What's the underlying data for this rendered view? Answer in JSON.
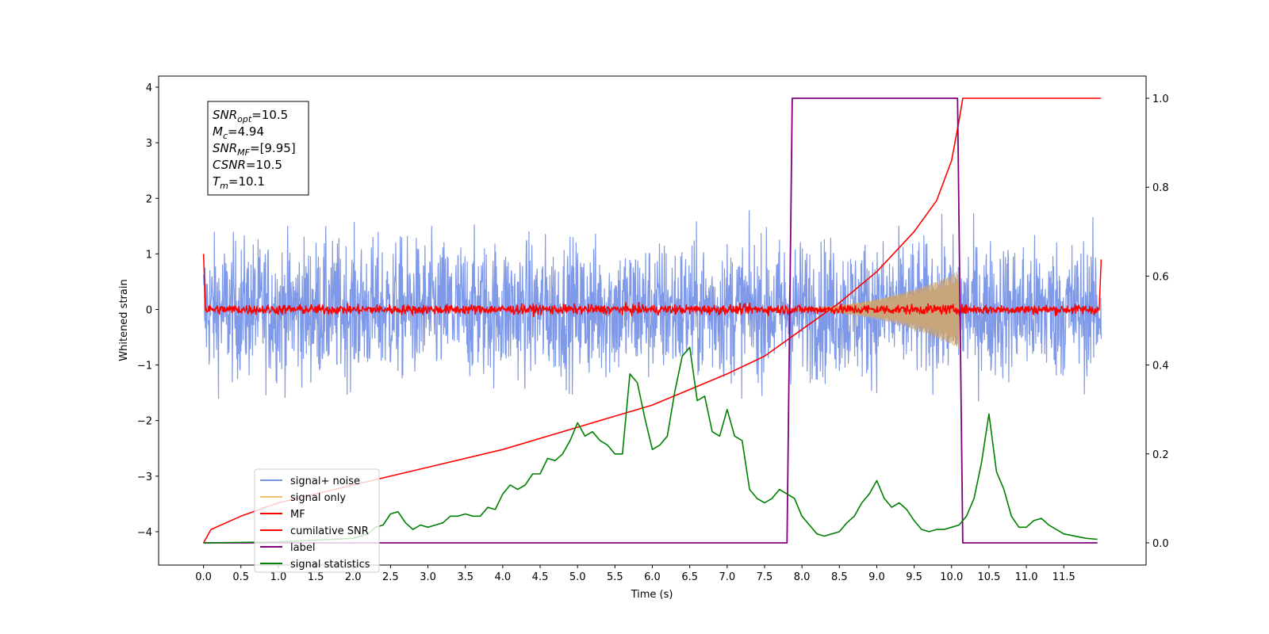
{
  "chart_data": {
    "type": "line",
    "xlabel": "Time (s)",
    "ylabel": "Whitened strain",
    "xlim": [
      -0.6,
      12.6
    ],
    "ylim": [
      -4.6,
      4.2
    ],
    "y2lim": [
      -0.05,
      1.05
    ],
    "x_ticks": [
      "0.0",
      "0.5",
      "1.0",
      "1.5",
      "2.0",
      "2.5",
      "3.0",
      "3.5",
      "4.0",
      "4.5",
      "5.0",
      "5.5",
      "6.0",
      "6.5",
      "7.0",
      "7.5",
      "8.0",
      "8.5",
      "9.0",
      "9.5",
      "10.0",
      "10.5",
      "11.0",
      "11.5"
    ],
    "y_ticks": [
      "4",
      "3",
      "2",
      "1",
      "0",
      "−1",
      "−2",
      "−3",
      "−4"
    ],
    "y2_ticks": [
      "1.0",
      "0.8",
      "0.6",
      "0.4",
      "0.2",
      "0.0"
    ],
    "info_box": [
      {
        "sym": "SNR",
        "sub": "opt",
        "val": "=10.5"
      },
      {
        "sym": "M",
        "sub": "c",
        "val": "=4.94"
      },
      {
        "sym": "SNR",
        "sub": "MF",
        "val": "=[9.95]"
      },
      {
        "sym": "CSNR",
        "sub": "",
        "val": "=10.5"
      },
      {
        "sym": "T",
        "sub": "m",
        "val": "=10.1"
      }
    ],
    "legend_position": "lower-left",
    "series": [
      {
        "name": "signal+ noise",
        "color": "#7893e8",
        "axis": "left",
        "x_range": [
          0,
          12
        ],
        "amplitude_approx": 1.5
      },
      {
        "name": "signal only",
        "color": "#f5c06a",
        "axis": "left",
        "x_range": [
          0,
          12
        ],
        "peak_time": 10.1,
        "peak_amplitude": 0.7
      },
      {
        "name": "MF",
        "color": "#ff0000",
        "axis": "left",
        "x_range": [
          0,
          12
        ],
        "amplitude_approx": 0.1
      },
      {
        "name": "cumilative SNR",
        "color": "#ff0000",
        "axis": "right",
        "points": [
          [
            0.0,
            0.0
          ],
          [
            0.1,
            0.03
          ],
          [
            0.5,
            0.06
          ],
          [
            1.0,
            0.09
          ],
          [
            2.0,
            0.13
          ],
          [
            3.0,
            0.17
          ],
          [
            4.0,
            0.21
          ],
          [
            5.0,
            0.26
          ],
          [
            6.0,
            0.31
          ],
          [
            7.0,
            0.38
          ],
          [
            7.5,
            0.42
          ],
          [
            8.0,
            0.48
          ],
          [
            8.5,
            0.54
          ],
          [
            9.0,
            0.61
          ],
          [
            9.5,
            0.7
          ],
          [
            9.8,
            0.77
          ],
          [
            10.0,
            0.86
          ],
          [
            10.1,
            0.95
          ],
          [
            10.15,
            1.0
          ],
          [
            12.0,
            1.0
          ]
        ]
      },
      {
        "name": "label",
        "color": "#800080",
        "axis": "right",
        "points": [
          [
            0.0,
            0.0
          ],
          [
            7.8,
            0.0
          ],
          [
            7.87,
            1.0
          ],
          [
            10.08,
            1.0
          ],
          [
            10.15,
            0.0
          ],
          [
            11.95,
            0.0
          ]
        ]
      },
      {
        "name": "signal statistics",
        "color": "#008000",
        "axis": "right",
        "points": [
          [
            0.0,
            0.0
          ],
          [
            1.0,
            0.002
          ],
          [
            2.0,
            0.01
          ],
          [
            2.2,
            0.02
          ],
          [
            2.3,
            0.035
          ],
          [
            2.4,
            0.04
          ],
          [
            2.5,
            0.065
          ],
          [
            2.6,
            0.07
          ],
          [
            2.7,
            0.045
          ],
          [
            2.8,
            0.03
          ],
          [
            2.9,
            0.04
          ],
          [
            3.0,
            0.035
          ],
          [
            3.1,
            0.04
          ],
          [
            3.2,
            0.045
          ],
          [
            3.3,
            0.06
          ],
          [
            3.4,
            0.06
          ],
          [
            3.5,
            0.065
          ],
          [
            3.6,
            0.06
          ],
          [
            3.7,
            0.06
          ],
          [
            3.8,
            0.08
          ],
          [
            3.9,
            0.075
          ],
          [
            4.0,
            0.11
          ],
          [
            4.1,
            0.13
          ],
          [
            4.2,
            0.12
          ],
          [
            4.3,
            0.13
          ],
          [
            4.4,
            0.155
          ],
          [
            4.5,
            0.155
          ],
          [
            4.6,
            0.19
          ],
          [
            4.7,
            0.185
          ],
          [
            4.8,
            0.2
          ],
          [
            4.9,
            0.23
          ],
          [
            5.0,
            0.27
          ],
          [
            5.1,
            0.24
          ],
          [
            5.2,
            0.25
          ],
          [
            5.3,
            0.23
          ],
          [
            5.4,
            0.22
          ],
          [
            5.5,
            0.2
          ],
          [
            5.6,
            0.2
          ],
          [
            5.7,
            0.38
          ],
          [
            5.8,
            0.36
          ],
          [
            5.9,
            0.28
          ],
          [
            6.0,
            0.21
          ],
          [
            6.1,
            0.22
          ],
          [
            6.2,
            0.24
          ],
          [
            6.3,
            0.34
          ],
          [
            6.4,
            0.42
          ],
          [
            6.5,
            0.44
          ],
          [
            6.6,
            0.32
          ],
          [
            6.7,
            0.33
          ],
          [
            6.8,
            0.25
          ],
          [
            6.9,
            0.24
          ],
          [
            7.0,
            0.3
          ],
          [
            7.1,
            0.24
          ],
          [
            7.2,
            0.23
          ],
          [
            7.3,
            0.12
          ],
          [
            7.4,
            0.1
          ],
          [
            7.5,
            0.09
          ],
          [
            7.6,
            0.1
          ],
          [
            7.7,
            0.12
          ],
          [
            7.8,
            0.11
          ],
          [
            7.9,
            0.1
          ],
          [
            8.0,
            0.06
          ],
          [
            8.1,
            0.04
          ],
          [
            8.2,
            0.02
          ],
          [
            8.3,
            0.015
          ],
          [
            8.4,
            0.02
          ],
          [
            8.5,
            0.025
          ],
          [
            8.6,
            0.045
          ],
          [
            8.7,
            0.06
          ],
          [
            8.8,
            0.09
          ],
          [
            8.9,
            0.11
          ],
          [
            9.0,
            0.14
          ],
          [
            9.1,
            0.1
          ],
          [
            9.2,
            0.08
          ],
          [
            9.3,
            0.09
          ],
          [
            9.4,
            0.075
          ],
          [
            9.5,
            0.05
          ],
          [
            9.6,
            0.03
          ],
          [
            9.7,
            0.025
          ],
          [
            9.8,
            0.03
          ],
          [
            9.9,
            0.03
          ],
          [
            10.0,
            0.035
          ],
          [
            10.1,
            0.04
          ],
          [
            10.2,
            0.06
          ],
          [
            10.3,
            0.1
          ],
          [
            10.4,
            0.18
          ],
          [
            10.5,
            0.29
          ],
          [
            10.6,
            0.16
          ],
          [
            10.7,
            0.12
          ],
          [
            10.8,
            0.06
          ],
          [
            10.9,
            0.035
          ],
          [
            11.0,
            0.035
          ],
          [
            11.1,
            0.05
          ],
          [
            11.2,
            0.055
          ],
          [
            11.3,
            0.04
          ],
          [
            11.4,
            0.03
          ],
          [
            11.5,
            0.02
          ],
          [
            11.8,
            0.01
          ],
          [
            11.95,
            0.008
          ]
        ]
      }
    ]
  }
}
